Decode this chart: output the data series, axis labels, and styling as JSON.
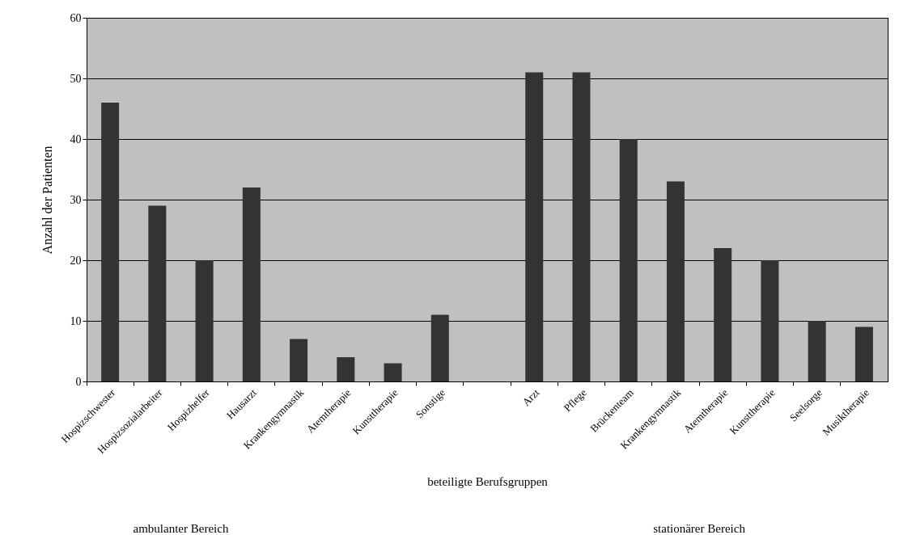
{
  "chart_data": {
    "type": "bar",
    "categories": [
      "Hospizschwester",
      "Hospizsozialarbeiter",
      "Hospizhelfer",
      "Hausarzt",
      "Krankengymnastik",
      "Atemtherapie",
      "Kunsttherapie",
      "Sonstige",
      null,
      "Arzt",
      "Pflege",
      "Brückenteam",
      "Krankengymnastik",
      "Atemtherapie",
      "Kunsttherapie",
      "Seelsorge",
      "Musiktherapie"
    ],
    "values": [
      46,
      29,
      20,
      32,
      7,
      4,
      3,
      11,
      null,
      51,
      51,
      40,
      33,
      22,
      20,
      10,
      9
    ],
    "color": "#333333",
    "ylabel": "Anzahl der Patienten",
    "xlabel": "beteiligte Berufsgruppen",
    "annotations": [
      "ambulanter Bereich",
      "stationärer Bereich"
    ],
    "ylim": [
      0,
      60
    ],
    "yticks": [
      0,
      10,
      20,
      30,
      40,
      50,
      60
    ],
    "grid": "y"
  }
}
